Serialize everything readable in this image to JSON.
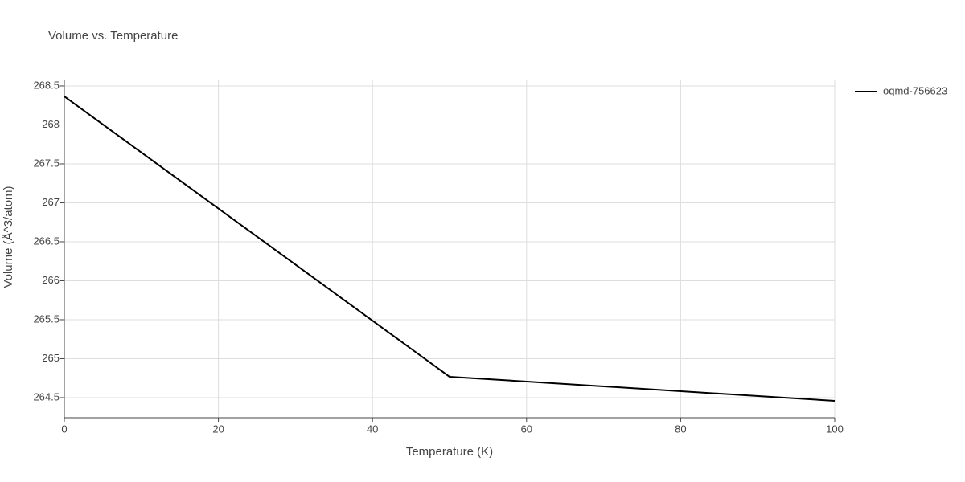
{
  "chart_data": {
    "type": "line",
    "title": "Volume vs. Temperature",
    "x_label": "Temperature (K)",
    "y_label": "Volume (Å^3/atom)",
    "x": [
      0,
      50,
      100
    ],
    "series": [
      {
        "name": "oqmd-756623",
        "color": "#000000",
        "values": [
          268.366,
          264.768,
          264.459
        ]
      }
    ],
    "xlim": [
      0,
      100
    ],
    "xticks": [
      0,
      20,
      40,
      60,
      80,
      100
    ],
    "ylim": [
      264.242,
      268.572
    ],
    "yticks": [
      {
        "value": 264.5,
        "label": "264.5"
      },
      {
        "value": 265,
        "label": "265"
      },
      {
        "value": 265.5,
        "label": "265.5"
      },
      {
        "value": 266,
        "label": "266"
      },
      {
        "value": 266.5,
        "label": "266.5"
      },
      {
        "value": 267,
        "label": "267"
      },
      {
        "value": 267.5,
        "label": "267.5"
      },
      {
        "value": 268,
        "label": "268"
      },
      {
        "value": 268.5,
        "label": "268.5"
      }
    ],
    "grid": true,
    "legend": "top-right"
  }
}
